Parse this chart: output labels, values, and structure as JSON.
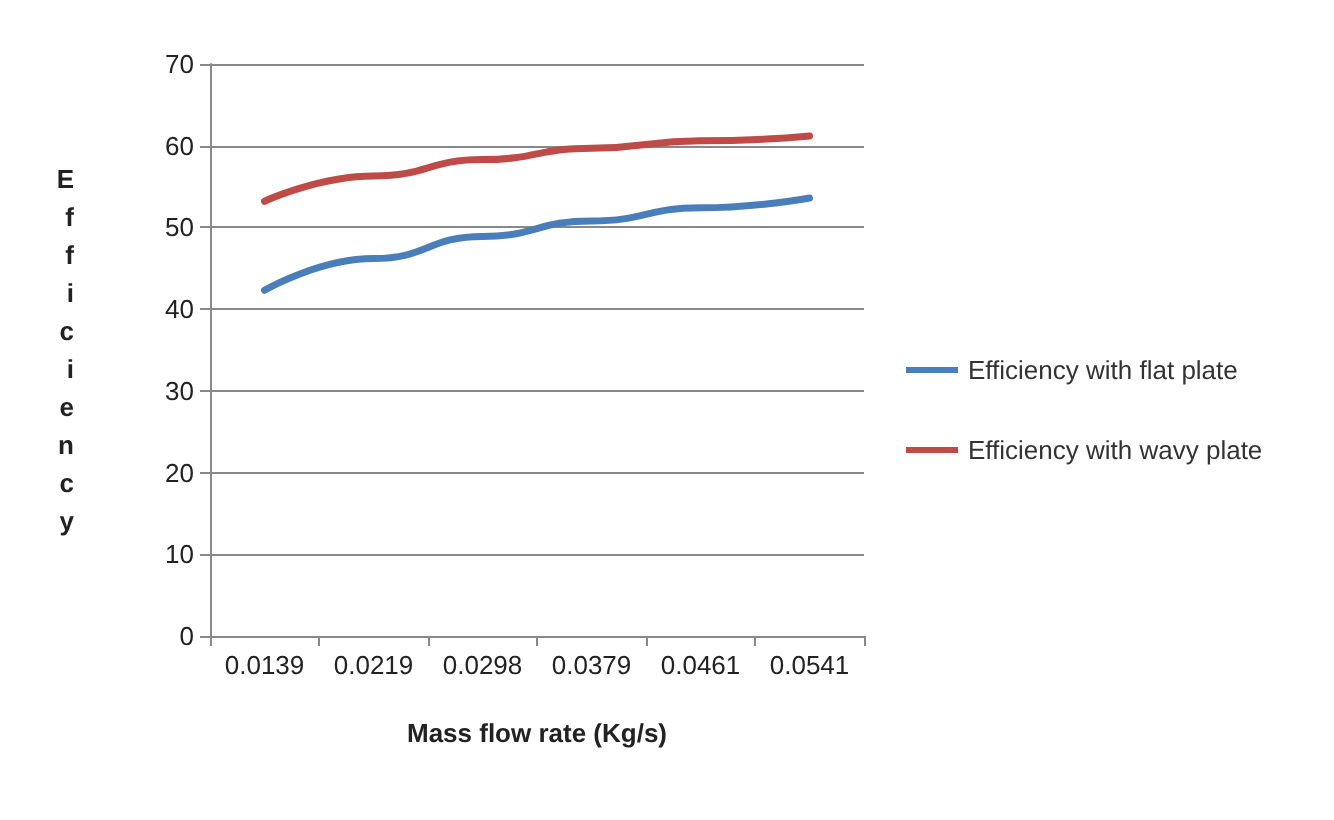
{
  "chart_data": {
    "type": "line",
    "xlabel": "Mass flow rate (Kg/s)",
    "ylabel": "Efficiency",
    "categories": [
      "0.0139",
      "0.0219",
      "0.0298",
      "0.0379",
      "0.0461",
      "0.0541"
    ],
    "series": [
      {
        "name": "Efficiency with flat plate",
        "color": "#4a7ebb",
        "values": [
          42.3,
          46.2,
          48.9,
          50.8,
          52.4,
          53.6
        ]
      },
      {
        "name": "Efficiency with wavy plate",
        "color": "#be4b48",
        "values": [
          53.2,
          56.3,
          58.3,
          59.7,
          60.6,
          61.2
        ]
      }
    ],
    "ylim": [
      0,
      70
    ],
    "yticks": [
      0,
      10,
      20,
      30,
      40,
      50,
      60,
      70
    ],
    "grid": "y",
    "legend": "right",
    "marker": "none"
  }
}
